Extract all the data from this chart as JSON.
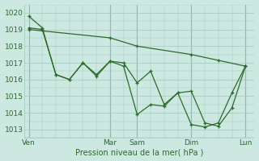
{
  "bg_color": "#cce8e0",
  "grid_color": "#a0c8bc",
  "line_color": "#2d6b2d",
  "ylabel_text": "Pression niveau de la mer( hPa )",
  "ylim": [
    1012.5,
    1020.5
  ],
  "yticks": [
    1013,
    1014,
    1015,
    1016,
    1017,
    1018,
    1019,
    1020
  ],
  "xtick_labels": [
    "Ven",
    "Mar",
    "Sam",
    "Dim",
    "Lun"
  ],
  "xtick_positions": [
    0,
    36,
    48,
    72,
    96
  ],
  "xlim": [
    -2,
    100
  ],
  "vlines_x": [
    0,
    36,
    48,
    72,
    96
  ],
  "lines": [
    {
      "x": [
        0,
        6,
        12,
        18,
        24,
        30,
        36,
        42,
        48,
        54,
        60,
        66,
        72,
        78,
        84,
        90,
        96
      ],
      "y": [
        1019.8,
        1019.1,
        1016.3,
        1016.0,
        1017.0,
        1016.3,
        1017.1,
        1017.0,
        1015.8,
        1016.5,
        1014.5,
        1015.2,
        1015.3,
        1013.4,
        1013.2,
        1014.3,
        1016.8
      ]
    },
    {
      "x": [
        0,
        6,
        12,
        18,
        24,
        30,
        36,
        42,
        48,
        54,
        60,
        66,
        72,
        78,
        84,
        90,
        96
      ],
      "y": [
        1019.1,
        1019.0,
        1016.3,
        1016.0,
        1017.0,
        1016.2,
        1017.1,
        1016.8,
        1013.9,
        1014.5,
        1014.4,
        1015.2,
        1013.3,
        1013.15,
        1013.4,
        1015.2,
        1016.8
      ]
    },
    {
      "x": [
        0,
        36,
        48,
        72,
        84,
        96
      ],
      "y": [
        1019.0,
        1018.5,
        1018.0,
        1017.5,
        1017.15,
        1016.8
      ]
    }
  ]
}
